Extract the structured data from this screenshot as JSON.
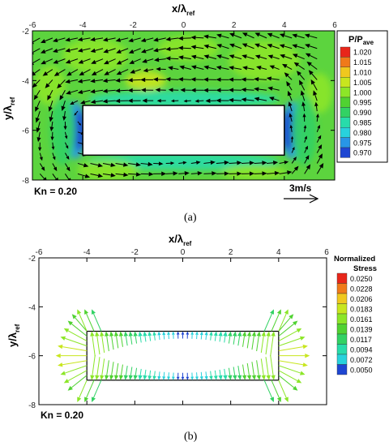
{
  "chart_data": [
    {
      "type": "contour_vector",
      "panel_label": "(a)",
      "xlabel": "x/λ",
      "xlabel_sub": "ref",
      "ylabel": "y/λ",
      "ylabel_sub": "ref",
      "xlim": [
        -6,
        6
      ],
      "ylim": [
        -8,
        -2
      ],
      "xticks": [
        "-6",
        "-4",
        "-2",
        "0",
        "2",
        "4",
        "6"
      ],
      "yticks": [
        "-2",
        "-4",
        "-6",
        "-8"
      ],
      "obstacle": {
        "x": [
          -4,
          4
        ],
        "y": [
          -7,
          -5
        ]
      },
      "legend_title": "P/P",
      "legend_title_sub": "ave",
      "legend_levels": [
        {
          "value": "1.020",
          "color": "#e8261a"
        },
        {
          "value": "1.015",
          "color": "#f07a1a"
        },
        {
          "value": "1.010",
          "color": "#f0c81e"
        },
        {
          "value": "1.005",
          "color": "#c8e61e"
        },
        {
          "value": "1.000",
          "color": "#8ce628"
        },
        {
          "value": "0.995",
          "color": "#50d232"
        },
        {
          "value": "0.990",
          "color": "#32d264"
        },
        {
          "value": "0.985",
          "color": "#28dcaa"
        },
        {
          "value": "0.980",
          "color": "#28d2dc"
        },
        {
          "value": "0.975",
          "color": "#2896e6"
        },
        {
          "value": "0.970",
          "color": "#1e46d2"
        }
      ],
      "annotation": "Kn = 0.20",
      "reference_vector": {
        "magnitude": 3,
        "unit": "m/s",
        "label": "3m/s"
      }
    },
    {
      "type": "vector",
      "panel_label": "(b)",
      "xlabel": "x/λ",
      "xlabel_sub": "ref",
      "ylabel": "y/λ",
      "ylabel_sub": "ref",
      "xlim": [
        -6,
        6
      ],
      "ylim": [
        -8,
        -2
      ],
      "xticks": [
        "-6",
        "-4",
        "-2",
        "0",
        "2",
        "4",
        "6"
      ],
      "yticks": [
        "-2",
        "-4",
        "-6",
        "-8"
      ],
      "obstacle": {
        "x": [
          -4,
          4
        ],
        "y": [
          -7,
          -5
        ]
      },
      "legend_title_line1": "Normalized",
      "legend_title_line2": "Stress",
      "legend_levels": [
        {
          "value": "0.0250",
          "color": "#e8261a"
        },
        {
          "value": "0.0228",
          "color": "#f07a1a"
        },
        {
          "value": "0.0206",
          "color": "#f0c81e"
        },
        {
          "value": "0.0183",
          "color": "#c8e61e"
        },
        {
          "value": "0.0161",
          "color": "#8ce628"
        },
        {
          "value": "0.0139",
          "color": "#50d232"
        },
        {
          "value": "0.0117",
          "color": "#32d264"
        },
        {
          "value": "0.0094",
          "color": "#28dcaa"
        },
        {
          "value": "0.0072",
          "color": "#28d2dc"
        },
        {
          "value": "0.0050",
          "color": "#1e46d2"
        }
      ],
      "annotation": "Kn = 0.20"
    }
  ]
}
